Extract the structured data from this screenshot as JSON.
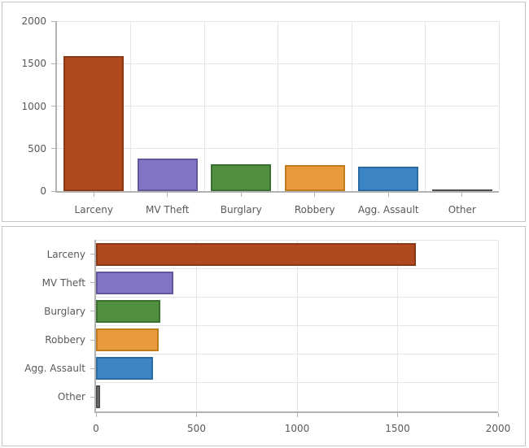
{
  "styles": {
    "text_color": "#595959",
    "grid_color": "#e5e5e5",
    "axis_color": "#b2b2b2",
    "panel_border": "#c5c5c5",
    "background": "#ffffff"
  },
  "chart_data": [
    {
      "type": "bar",
      "orientation": "vertical",
      "title": "",
      "xlabel": "",
      "ylabel": "",
      "categories": [
        "Larceny",
        "MV Theft",
        "Burglary",
        "Robbery",
        "Agg. Assault",
        "Other"
      ],
      "values": [
        1590,
        385,
        320,
        310,
        285,
        20
      ],
      "value_axis": {
        "min": 0,
        "max": 2000,
        "ticks": [
          0,
          500,
          1000,
          1500,
          2000
        ],
        "tick_labels": [
          "0",
          "500",
          "1000",
          "1500",
          "2000"
        ]
      },
      "grid": true,
      "legend": false,
      "bar_colors": [
        "#b0491d",
        "#8274c5",
        "#4f8f3e",
        "#e89b3c",
        "#3c86c6",
        "#808080"
      ],
      "bar_border_colors": [
        "#8c3817",
        "#64559f",
        "#3b7030",
        "#c17c1e",
        "#2a6aa5",
        "#4d4d4d"
      ]
    },
    {
      "type": "bar",
      "orientation": "horizontal",
      "title": "",
      "xlabel": "",
      "ylabel": "",
      "categories": [
        "Larceny",
        "MV Theft",
        "Burglary",
        "Robbery",
        "Agg. Assault",
        "Other"
      ],
      "values": [
        1590,
        385,
        320,
        310,
        285,
        20
      ],
      "value_axis": {
        "min": 0,
        "max": 2000,
        "ticks": [
          0,
          500,
          1000,
          1500,
          2000
        ],
        "tick_labels": [
          "0",
          "500",
          "1000",
          "1500",
          "2000"
        ]
      },
      "grid": true,
      "legend": false,
      "bar_colors": [
        "#b0491d",
        "#8274c5",
        "#4f8f3e",
        "#e89b3c",
        "#3c86c6",
        "#808080"
      ],
      "bar_border_colors": [
        "#8c3817",
        "#64559f",
        "#3b7030",
        "#c17c1e",
        "#2a6aa5",
        "#4d4d4d"
      ]
    }
  ]
}
